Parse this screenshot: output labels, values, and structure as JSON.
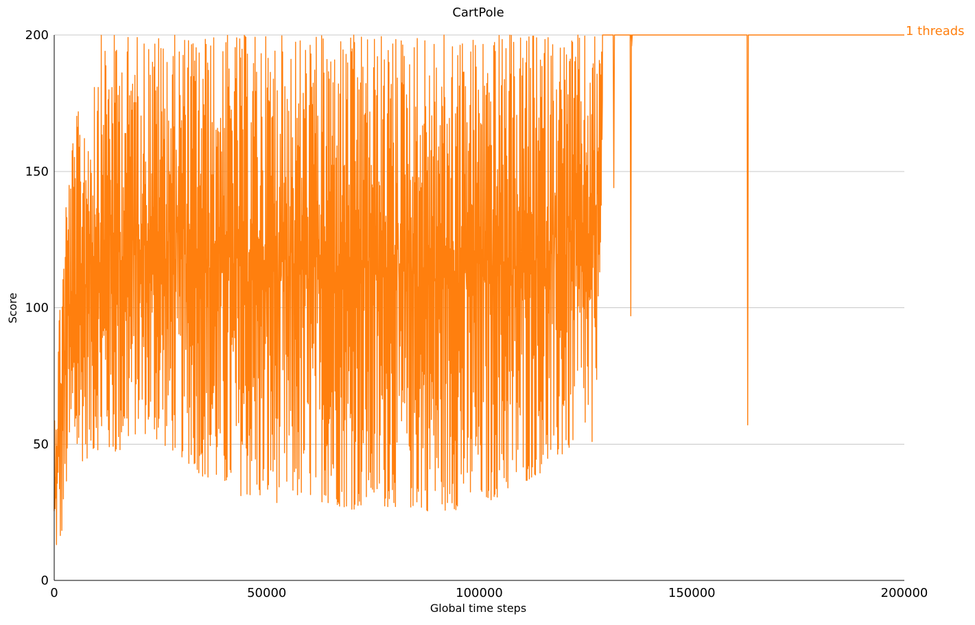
{
  "chart_data": {
    "type": "line",
    "title": "CartPole",
    "xlabel": "Global time steps",
    "ylabel": "Score",
    "xlim": [
      0,
      200000
    ],
    "ylim": [
      0,
      200
    ],
    "xticks": [
      0,
      50000,
      100000,
      150000,
      200000
    ],
    "yticks": [
      0,
      50,
      100,
      150,
      200
    ],
    "grid": "horizontal",
    "legend": "end-of-line label",
    "series": [
      {
        "name": "1 threads",
        "color": "#ff7f0e",
        "envelope": {
          "x": [
            0,
            1500,
            3000,
            5000,
            8000,
            10000,
            15000,
            20000,
            25000,
            30000,
            35000,
            40000,
            50000,
            60000,
            70000,
            80000,
            90000,
            100000,
            110000,
            120000,
            125000,
            127000,
            129000
          ],
          "low": [
            10,
            12,
            35,
            42,
            45,
            48,
            45,
            55,
            50,
            45,
            38,
            33,
            28,
            30,
            26,
            27,
            25,
            27,
            35,
            45,
            55,
            38,
            150
          ],
          "high": [
            65,
            115,
            150,
            170,
            180,
            200,
            200,
            200,
            200,
            200,
            200,
            200,
            200,
            200,
            200,
            200,
            200,
            200,
            200,
            200,
            200,
            200,
            200
          ]
        },
        "dips": [
          {
            "x": 131500,
            "y": 144
          },
          {
            "x": 135500,
            "y": 97
          },
          {
            "x": 135700,
            "y": 196
          },
          {
            "x": 163000,
            "y": 57
          }
        ],
        "final_value": 200
      }
    ]
  }
}
